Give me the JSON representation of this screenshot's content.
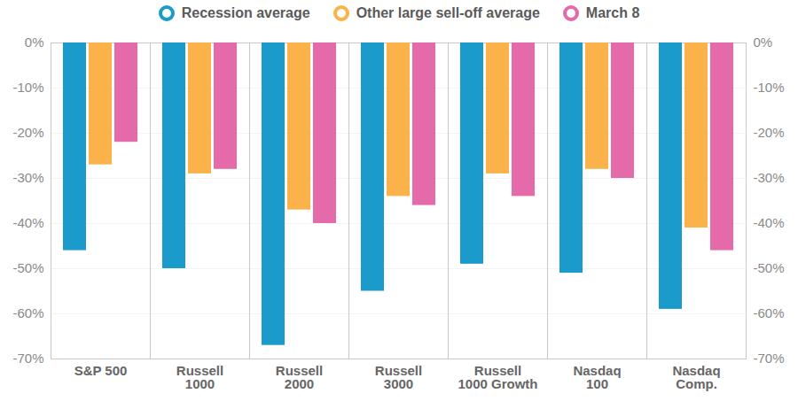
{
  "chart_data": {
    "type": "bar",
    "categories": [
      "S&P 500",
      "Russell 1000",
      "Russell 2000",
      "Russell 3000",
      "Russell 1000 Growth",
      "Nasdaq 100",
      "Nasdaq Comp."
    ],
    "series": [
      {
        "name": "Recession average",
        "color": "#1a9bcb",
        "values": [
          -46,
          -50,
          -67,
          -55,
          -49,
          -51,
          -59
        ]
      },
      {
        "name": "Other large sell-off average",
        "color": "#fbb24b",
        "values": [
          -27,
          -29,
          -37,
          -34,
          -29,
          -28,
          -41
        ]
      },
      {
        "name": "March 8",
        "color": "#e56aa9",
        "values": [
          -22,
          -28,
          -40,
          -36,
          -34,
          -30,
          -46
        ]
      }
    ],
    "ylim": [
      -70,
      0
    ],
    "yticks": [
      {
        "value": 0,
        "label": "0%"
      },
      {
        "value": -10,
        "label": "-10%"
      },
      {
        "value": -20,
        "label": "-20%"
      },
      {
        "value": -30,
        "label": "-30%"
      },
      {
        "value": -40,
        "label": "-40%"
      },
      {
        "value": -50,
        "label": "-50%"
      },
      {
        "value": -60,
        "label": "-60%"
      },
      {
        "value": -70,
        "label": "-70%"
      }
    ],
    "grid": true,
    "legend": "top"
  }
}
